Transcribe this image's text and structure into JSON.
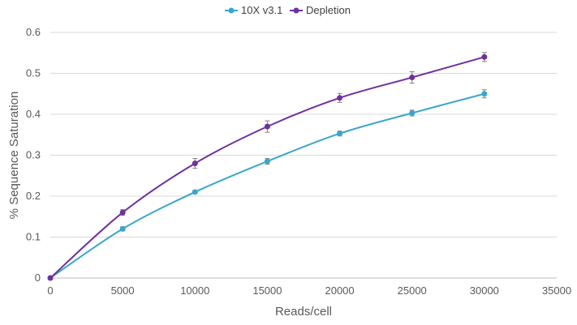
{
  "chart_data": {
    "type": "line",
    "title": "",
    "xlabel": "Reads/cell",
    "ylabel": "% Sequence Saturation",
    "xlim": [
      0,
      35000
    ],
    "ylim": [
      0,
      0.6
    ],
    "xticks": [
      "0",
      "5000",
      "10000",
      "15000",
      "20000",
      "25000",
      "30000",
      "35000"
    ],
    "yticks": [
      "0",
      "0.1",
      "0.2",
      "0.3",
      "0.4",
      "0.5",
      "0.6"
    ],
    "grid": "horizontal",
    "legend": "top-center",
    "x": [
      0,
      5000,
      10000,
      15000,
      20000,
      25000,
      30000
    ],
    "series": [
      {
        "name": "10X v3.1",
        "color": "#3aa6c9",
        "values": [
          0,
          0.12,
          0.21,
          0.285,
          0.353,
          0.403,
          0.45
        ],
        "errors": [
          0,
          0.005,
          0.004,
          0.007,
          0.006,
          0.007,
          0.01
        ]
      },
      {
        "name": "Depletion",
        "color": "#7030a0",
        "values": [
          0,
          0.16,
          0.28,
          0.37,
          0.44,
          0.49,
          0.54
        ],
        "errors": [
          0,
          0.007,
          0.012,
          0.014,
          0.011,
          0.014,
          0.011
        ]
      }
    ]
  }
}
